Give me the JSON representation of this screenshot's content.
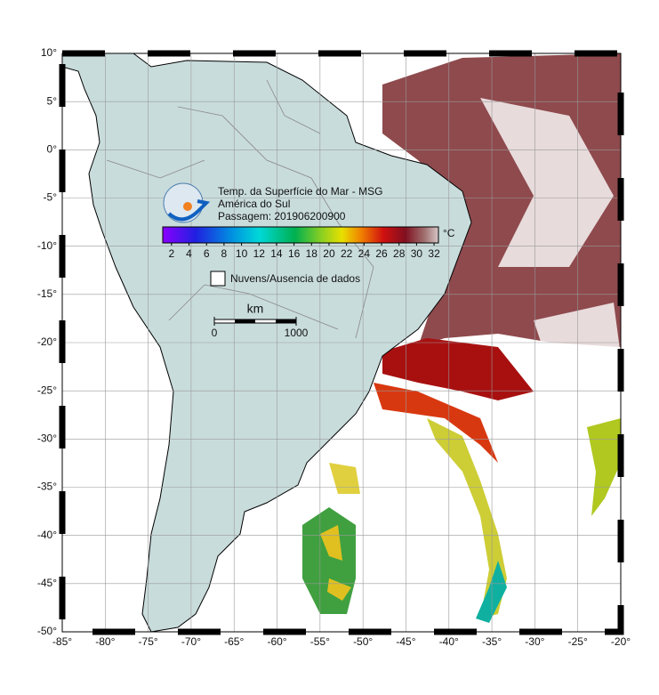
{
  "map": {
    "title_lines": [
      "Temp. da Superfície do Mar - MSG",
      "América do Sul",
      "Passagem: 201906200900"
    ],
    "lonlim": [
      -85,
      -20
    ],
    "latlim": [
      -50,
      10
    ],
    "lonticks": [
      {
        "value": -85,
        "label": "-85°"
      },
      {
        "value": -80,
        "label": "-80°"
      },
      {
        "value": -75,
        "label": "-75°"
      },
      {
        "value": -70,
        "label": "-70°"
      },
      {
        "value": -65,
        "label": "-65°"
      },
      {
        "value": -60,
        "label": "-60°"
      },
      {
        "value": -55,
        "label": "-55°"
      },
      {
        "value": -50,
        "label": "-50°"
      },
      {
        "value": -45,
        "label": "-45°"
      },
      {
        "value": -40,
        "label": "-40°"
      },
      {
        "value": -35,
        "label": "-35°"
      },
      {
        "value": -30,
        "label": "-30°"
      },
      {
        "value": -25,
        "label": "-25°"
      },
      {
        "value": -20,
        "label": "-20°"
      }
    ],
    "latticks": [
      {
        "value": 10,
        "label": "10°"
      },
      {
        "value": 5,
        "label": "5°"
      },
      {
        "value": 0,
        "label": "0°"
      },
      {
        "value": -5,
        "label": "-5°"
      },
      {
        "value": -10,
        "label": "-10°"
      },
      {
        "value": -15,
        "label": "-15°"
      },
      {
        "value": -20,
        "label": "-20°"
      },
      {
        "value": -25,
        "label": "-25°"
      },
      {
        "value": -30,
        "label": "-30°"
      },
      {
        "value": -35,
        "label": "-35°"
      },
      {
        "value": -40,
        "label": "-40°"
      },
      {
        "value": -45,
        "label": "-45°"
      },
      {
        "value": -50,
        "label": "-50°"
      }
    ],
    "colorbar": {
      "unit": "°C",
      "lim": [
        1,
        32.5
      ],
      "ticks": [
        2,
        4,
        6,
        8,
        10,
        12,
        14,
        16,
        18,
        20,
        22,
        24,
        26,
        28,
        30,
        32
      ]
    },
    "legend": "Nuvens/Ausencia de dados",
    "scalebar": {
      "unit": "km",
      "ticks": [
        0,
        1000
      ]
    }
  }
}
